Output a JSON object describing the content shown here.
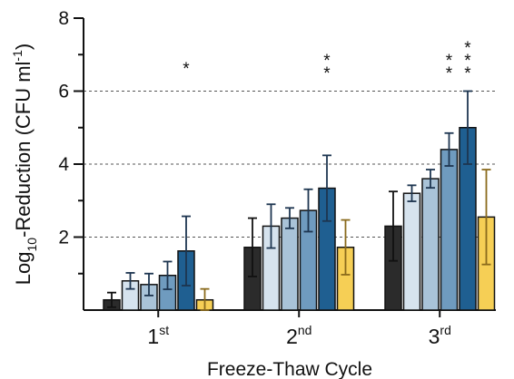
{
  "chart_data": {
    "type": "bar",
    "categories": [
      "1st",
      "2nd",
      "3rd"
    ],
    "category_labels": [
      {
        "base": "1",
        "sup": "st"
      },
      {
        "base": "2",
        "sup": "nd"
      },
      {
        "base": "3",
        "sup": "rd"
      }
    ],
    "xlabel": "Freeze-Thaw Cycle",
    "ylabel": {
      "prefix": "Log",
      "subscript": "10",
      "middle": "-Reduction (CFU ml",
      "superscript": "-1",
      "suffix": ")"
    },
    "ylim": [
      0,
      8
    ],
    "yticks": [
      2,
      4,
      6,
      8
    ],
    "gridlines": [
      2,
      4,
      6
    ],
    "grid": "dashed horizontal at 2, 4, 6",
    "series": [
      {
        "color": "#2b2b2b",
        "values": [
          0.28,
          1.72,
          2.3
        ],
        "errors": [
          0.2,
          0.8,
          0.95
        ]
      },
      {
        "color": "#d6e3ee",
        "values": [
          0.8,
          2.3,
          3.2
        ],
        "errors": [
          0.22,
          0.6,
          0.22
        ]
      },
      {
        "color": "#a9c3d8",
        "values": [
          0.7,
          2.52,
          3.6
        ],
        "errors": [
          0.3,
          0.28,
          0.25
        ]
      },
      {
        "color": "#6f9bbf",
        "values": [
          0.95,
          2.73,
          4.4
        ],
        "errors": [
          0.38,
          0.58,
          0.45
        ]
      },
      {
        "color": "#1f5f91",
        "values": [
          1.62,
          3.34,
          5.0
        ],
        "errors": [
          0.95,
          0.9,
          1.0
        ]
      },
      {
        "color": "#f6cf55",
        "values": [
          0.28,
          1.72,
          2.55
        ],
        "errors": [
          0.3,
          0.75,
          1.3
        ]
      }
    ],
    "annotations": [
      {
        "category_index": 0,
        "series_index": 4,
        "text": "*"
      },
      {
        "category_index": 1,
        "series_index": 4,
        "text": "**"
      },
      {
        "category_index": 2,
        "series_index": 3,
        "text": "**"
      },
      {
        "category_index": 2,
        "series_index": 4,
        "text": "***"
      }
    ]
  }
}
